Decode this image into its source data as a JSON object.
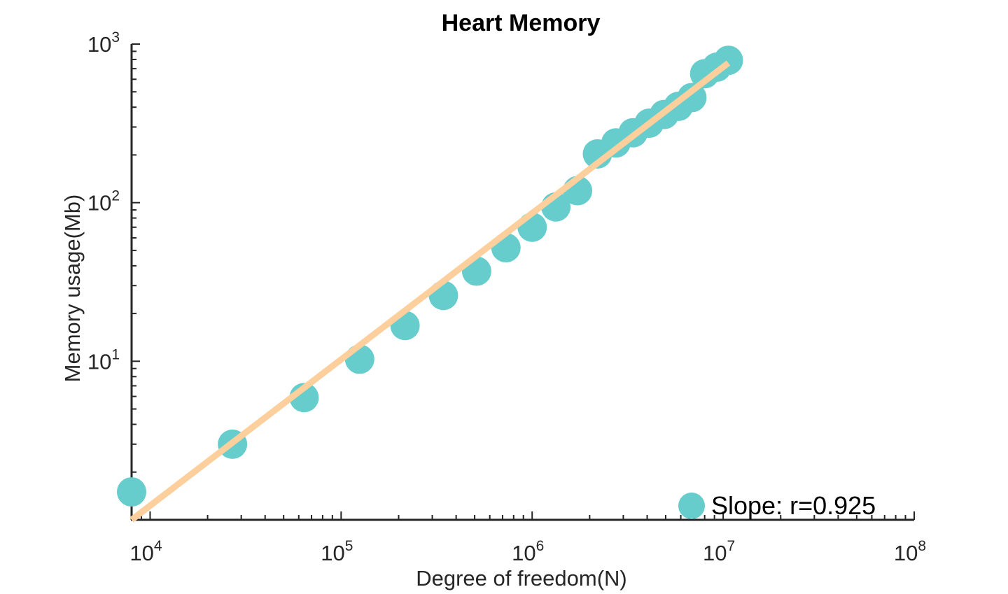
{
  "chart_data": {
    "type": "scatter",
    "title": "Heart Memory",
    "xlabel": "Degree of freedom(N)",
    "ylabel": "Memory usage(Mb)",
    "xscale": "log",
    "yscale": "log",
    "xlim": [
      8000,
      100000000
    ],
    "ylim": [
      1.0,
      1000
    ],
    "x_ticks": [
      {
        "base": "10",
        "exp": "4"
      },
      {
        "base": "10",
        "exp": "5"
      },
      {
        "base": "10",
        "exp": "6"
      },
      {
        "base": "10",
        "exp": "7"
      },
      {
        "base": "10",
        "exp": "8"
      }
    ],
    "y_ticks": [
      {
        "base": "10",
        "exp": "1"
      },
      {
        "base": "10",
        "exp": "2"
      },
      {
        "base": "10",
        "exp": "3"
      }
    ],
    "series": [
      {
        "type": "scatter",
        "color": "#66CDCC",
        "points": [
          {
            "x": 8000,
            "y": 1.5
          },
          {
            "x": 27000,
            "y": 3.0
          },
          {
            "x": 64000,
            "y": 5.9
          },
          {
            "x": 125000,
            "y": 10.3
          },
          {
            "x": 216000,
            "y": 16.8
          },
          {
            "x": 343000,
            "y": 26
          },
          {
            "x": 512000,
            "y": 37
          },
          {
            "x": 729000,
            "y": 52
          },
          {
            "x": 1000000,
            "y": 70
          },
          {
            "x": 1331000,
            "y": 94
          },
          {
            "x": 1728000,
            "y": 119
          },
          {
            "x": 2197000,
            "y": 203
          },
          {
            "x": 2744000,
            "y": 238
          },
          {
            "x": 3375000,
            "y": 276
          },
          {
            "x": 4096000,
            "y": 317
          },
          {
            "x": 4913000,
            "y": 360
          },
          {
            "x": 5832000,
            "y": 405
          },
          {
            "x": 6859000,
            "y": 460
          },
          {
            "x": 8000000,
            "y": 650
          },
          {
            "x": 9261000,
            "y": 715
          },
          {
            "x": 10648000,
            "y": 790
          }
        ]
      },
      {
        "type": "line",
        "color": "#FCCF9C",
        "points": [
          {
            "x": 8000,
            "y": 1.0
          },
          {
            "x": 10648000,
            "y": 760
          }
        ]
      }
    ],
    "legend": {
      "position": "bottom-right",
      "label": "Slope:  r=0.925",
      "marker_color": "#66CDCC"
    }
  }
}
